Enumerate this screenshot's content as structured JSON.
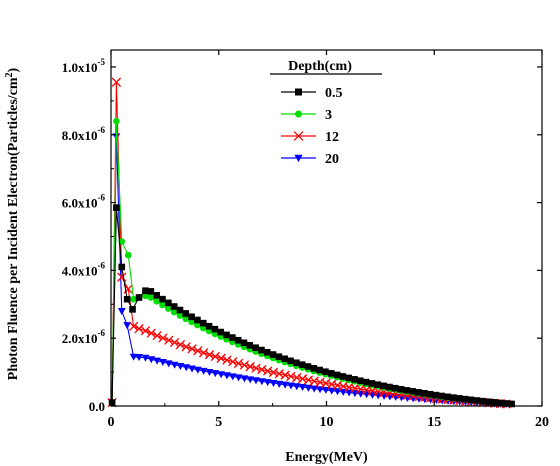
{
  "chart_data": {
    "type": "line",
    "xlabel": "Energy(MeV)",
    "ylabel": "Photon Fluence per Incident Electron(Particles/cm",
    "ylabel_sup": "2",
    "ylabel_end": ")",
    "xlim": [
      0,
      20
    ],
    "ylim": [
      0,
      1.05e-05
    ],
    "x_ticks": [
      0,
      5,
      10,
      15,
      20
    ],
    "x_tick_labels": [
      "0",
      "5",
      "10",
      "15",
      "20"
    ],
    "y_ticks": [
      0,
      2e-06,
      4e-06,
      6e-06,
      8e-06,
      1e-05
    ],
    "y_tick_labels": [
      {
        "base": "0.0",
        "exp": ""
      },
      {
        "base": "2.0x10",
        "exp": "-6"
      },
      {
        "base": "4.0x10",
        "exp": "-6"
      },
      {
        "base": "6.0x10",
        "exp": "-6"
      },
      {
        "base": "8.0x10",
        "exp": "-6"
      },
      {
        "base": "1.0x10",
        "exp": "-5"
      }
    ],
    "grid": false,
    "legend_title": "Depth(cm)",
    "legend_position": "top-center",
    "series": [
      {
        "name": "0.5",
        "color": "#000000",
        "marker": "square",
        "peaks": [
          [
            0.05,
            1e-07
          ],
          [
            0.25,
            5.85e-06
          ],
          [
            0.5,
            4.1e-06
          ],
          [
            0.75,
            3.15e-06
          ],
          [
            1.0,
            2.85e-06
          ],
          [
            1.3,
            3.2e-06
          ],
          [
            1.6,
            3.4e-06
          ],
          [
            1.85,
            3.38e-06
          ]
        ],
        "tail_from": 1.85,
        "tail_to": 18.6,
        "tail_amp": 3.38e-06,
        "tail_end": 6e-08,
        "tail_exp": 1.15
      },
      {
        "name": "3",
        "color": "#00dd00",
        "marker": "circle",
        "peaks": [
          [
            0.05,
            1e-07
          ],
          [
            0.25,
            8.4e-06
          ],
          [
            0.5,
            4.85e-06
          ],
          [
            0.8,
            4.45e-06
          ],
          [
            1.05,
            3.15e-06
          ],
          [
            1.3,
            3.2e-06
          ],
          [
            1.6,
            3.25e-06
          ],
          [
            1.85,
            3.2e-06
          ]
        ],
        "tail_from": 1.85,
        "tail_to": 18.6,
        "tail_amp": 3.2e-06,
        "tail_end": 6e-08,
        "tail_exp": 1.2
      },
      {
        "name": "12",
        "color": "#ff0000",
        "marker": "cross",
        "peaks": [
          [
            0.05,
            1e-07
          ],
          [
            0.25,
            9.55e-06
          ],
          [
            0.5,
            3.8e-06
          ],
          [
            0.8,
            3.45e-06
          ],
          [
            1.05,
            2.35e-06
          ],
          [
            1.3,
            2.28e-06
          ],
          [
            1.6,
            2.22e-06
          ]
        ],
        "tail_from": 1.6,
        "tail_to": 18.6,
        "tail_amp": 2.22e-06,
        "tail_end": 5e-08,
        "tail_exp": 1.1
      },
      {
        "name": "20",
        "color": "#0000ff",
        "marker": "triangle-down",
        "peaks": [
          [
            0.05,
            1e-07
          ],
          [
            0.25,
            7.95e-06
          ],
          [
            0.5,
            2.8e-06
          ],
          [
            0.75,
            2.38e-06
          ],
          [
            1.05,
            1.45e-06
          ],
          [
            1.3,
            1.44e-06
          ],
          [
            1.6,
            1.42e-06
          ]
        ],
        "tail_from": 1.6,
        "tail_to": 18.6,
        "tail_amp": 1.42e-06,
        "tail_end": 5e-08,
        "tail_exp": 0.95
      }
    ]
  }
}
